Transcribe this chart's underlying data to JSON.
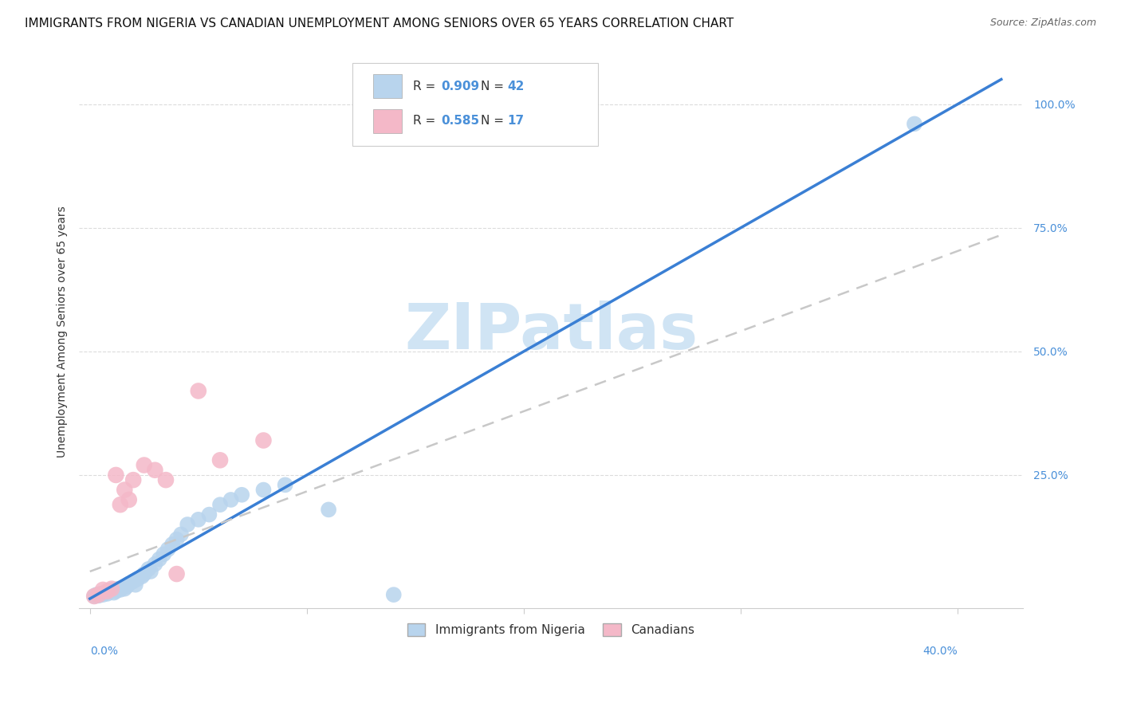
{
  "title": "IMMIGRANTS FROM NIGERIA VS CANADIAN UNEMPLOYMENT AMONG SENIORS OVER 65 YEARS CORRELATION CHART",
  "source": "Source: ZipAtlas.com",
  "ylabel": "Unemployment Among Seniors over 65 years",
  "ytick_labels": [
    "25.0%",
    "50.0%",
    "75.0%",
    "100.0%"
  ],
  "ytick_positions": [
    0.25,
    0.5,
    0.75,
    1.0
  ],
  "xtick_positions": [
    0.0,
    0.1,
    0.2,
    0.3,
    0.4
  ],
  "xlim": [
    -0.005,
    0.43
  ],
  "ylim": [
    -0.02,
    1.1
  ],
  "legend_entries": [
    {
      "r_val": "0.909",
      "n_val": "42",
      "color": "#b8d4ed"
    },
    {
      "r_val": "0.585",
      "n_val": "17",
      "color": "#f4b8c8"
    }
  ],
  "legend_bottom": [
    "Immigrants from Nigeria",
    "Canadians"
  ],
  "legend_bottom_colors": [
    "#b8d4ed",
    "#f4b8c8"
  ],
  "blue_scatter_x": [
    0.002,
    0.003,
    0.004,
    0.005,
    0.006,
    0.007,
    0.008,
    0.009,
    0.01,
    0.011,
    0.012,
    0.013,
    0.014,
    0.015,
    0.016,
    0.017,
    0.018,
    0.02,
    0.021,
    0.022,
    0.024,
    0.025,
    0.027,
    0.028,
    0.03,
    0.032,
    0.034,
    0.036,
    0.038,
    0.04,
    0.042,
    0.045,
    0.05,
    0.055,
    0.06,
    0.065,
    0.07,
    0.08,
    0.09,
    0.11,
    0.14,
    0.38
  ],
  "blue_scatter_y": [
    0.005,
    0.008,
    0.006,
    0.01,
    0.008,
    0.012,
    0.01,
    0.015,
    0.018,
    0.012,
    0.015,
    0.02,
    0.018,
    0.022,
    0.02,
    0.025,
    0.03,
    0.035,
    0.028,
    0.04,
    0.045,
    0.05,
    0.06,
    0.055,
    0.07,
    0.08,
    0.09,
    0.1,
    0.11,
    0.12,
    0.13,
    0.15,
    0.16,
    0.17,
    0.19,
    0.2,
    0.21,
    0.22,
    0.23,
    0.18,
    0.008,
    0.96
  ],
  "pink_scatter_x": [
    0.002,
    0.004,
    0.006,
    0.008,
    0.01,
    0.012,
    0.014,
    0.016,
    0.018,
    0.02,
    0.025,
    0.03,
    0.035,
    0.04,
    0.05,
    0.06,
    0.08
  ],
  "pink_scatter_y": [
    0.005,
    0.008,
    0.018,
    0.015,
    0.02,
    0.25,
    0.19,
    0.22,
    0.2,
    0.24,
    0.27,
    0.26,
    0.24,
    0.05,
    0.42,
    0.28,
    0.32
  ],
  "blue_line_slope": 2.5,
  "blue_line_intercept": 0.0,
  "pink_line_slope": 1.62,
  "pink_line_intercept": 0.055,
  "blue_line_color": "#3a7fd4",
  "pink_line_color": "#c8c8c8",
  "scatter_blue_color": "#b8d4ed",
  "scatter_pink_color": "#f4b8c8",
  "watermark_text": "ZIPatlas",
  "watermark_color": "#d0e4f4",
  "grid_color": "#d8d8d8",
  "tick_label_color": "#4a90d9",
  "text_color": "#333333",
  "background_color": "#ffffff",
  "title_fontsize": 11,
  "ylabel_fontsize": 10,
  "tick_fontsize": 10,
  "legend_fontsize": 11
}
